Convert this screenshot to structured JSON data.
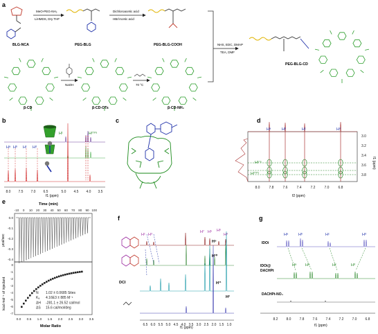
{
  "panels": {
    "a": {
      "letter": "a",
      "reactant": "BLG-NCA",
      "step1_top": "MeO-PEG-NH₂",
      "step1_bottom": "LiHMDS, Dry THF",
      "mid": "PEG-BLG",
      "step2_top": "Dichloroacetic acid",
      "step2_bottom": "HBr/Acetic acid",
      "acid": "PEG-BLG-COOH",
      "coupling_top": "NHS, EDC, DMAP",
      "coupling_bottom": "TEA, DMF",
      "product": "PEG-BLG-CD",
      "cd": "β-CD",
      "tosyl_reagent": "NaOH",
      "cd_ots": "β-CD-OTs",
      "amine_temp": "70 °C",
      "cd_nh2": "β-CD-NH₂"
    },
    "b": {
      "letter": "b",
      "axis_title": "f1 (ppm)",
      "ticks": [
        "8.0",
        "7.5",
        "7.0",
        "6.5",
        "5.0",
        "4.5",
        "4.0",
        "3.5"
      ],
      "labels": {
        "ha": "Hᵃ",
        "hb": "Hᵇ",
        "hc": "Hᶜ",
        "hd": "Hᵈ",
        "h1": "H¹",
        "h236": "H²’³’⁶"
      }
    },
    "c": {
      "letter": "c"
    },
    "d": {
      "letter": "d",
      "x_title": "f2 (ppm)",
      "y_title": "f1 (ppm)",
      "x_ticks": [
        "8.0",
        "7.8",
        "7.6",
        "7.4",
        "7.2",
        "7.0",
        "6.8"
      ],
      "y_ticks": [
        "3.0",
        "3.2",
        "3.4",
        "3.6",
        "3.8"
      ],
      "labels": {
        "ha": "Hᵃ",
        "hb": "Hᵇ",
        "hc": "Hᶜ",
        "hd": "Hᵈ",
        "h56": "H⁵’⁶",
        "h235": "H²’³’⁵"
      }
    },
    "e": {
      "letter": "e",
      "time_title": "Time (min)",
      "time_ticks": [
        "-10",
        "0",
        "10",
        "20",
        "30",
        "40",
        "50",
        "60",
        "70",
        "80",
        "90",
        "100"
      ],
      "y_top": "μcal/sec",
      "y_top_ticks": [
        "0.0",
        "-0.1",
        "-0.2",
        "-0.3",
        "-0.4"
      ],
      "y_bottom": "kcal mol⁻¹ of injectant",
      "y_bottom_ticks": [
        "0",
        "-1",
        "-2",
        "-3",
        "-4",
        "-5",
        "-6",
        "-7"
      ],
      "x_title": "Molar Ratio",
      "x_ticks": [
        "0.0",
        "0.5",
        "1.0",
        "1.5",
        "2.0",
        "2.5",
        "3.0",
        "3.5"
      ],
      "fit": [
        {
          "sym": "N",
          "val": "1.02 ± 0.0685 Sites"
        },
        {
          "sym": "Kₐ",
          "val": "4.16E3 ± 885 M⁻¹"
        },
        {
          "sym": "ΔH",
          "val": "-281.1 ± 26.52 cal/mol"
        },
        {
          "sym": "ΔS",
          "val": "15.6 cal/mol/deg"
        }
      ]
    },
    "f": {
      "letter": "f",
      "axis_title": "f1 (ppm)",
      "ticks": [
        "6.5",
        "6.0",
        "5.5",
        "5.0",
        "4.5",
        "4.0",
        "3.5",
        "3.0",
        "2.5",
        "2.0",
        "1.5",
        "1.0"
      ],
      "dci": "DCI",
      "labels": {
        "h1": "H¹",
        "h3": "H³",
        "h7": "H⁷",
        "h5": "H⁵",
        "h6": "H⁶",
        "h4": "H⁴",
        "h9": "H⁹",
        "h10": "H¹⁰",
        "h11": "H¹¹",
        "h2": "H²"
      }
    },
    "g": {
      "letter": "g",
      "axis_title": "f1 (ppm)",
      "ticks": [
        "8.2",
        "8.0",
        "7.8",
        "7.6",
        "7.4",
        "7.2",
        "7.0",
        "6.8"
      ],
      "traces": [
        "IDOi",
        "IDOi@\nDACHPt",
        "DACHPt-NO₃"
      ],
      "labels": {
        "ha": "Hᵃ",
        "hb": "Hᵇ",
        "hc": "Hᶜ",
        "hd": "Hᵈ"
      }
    }
  }
}
